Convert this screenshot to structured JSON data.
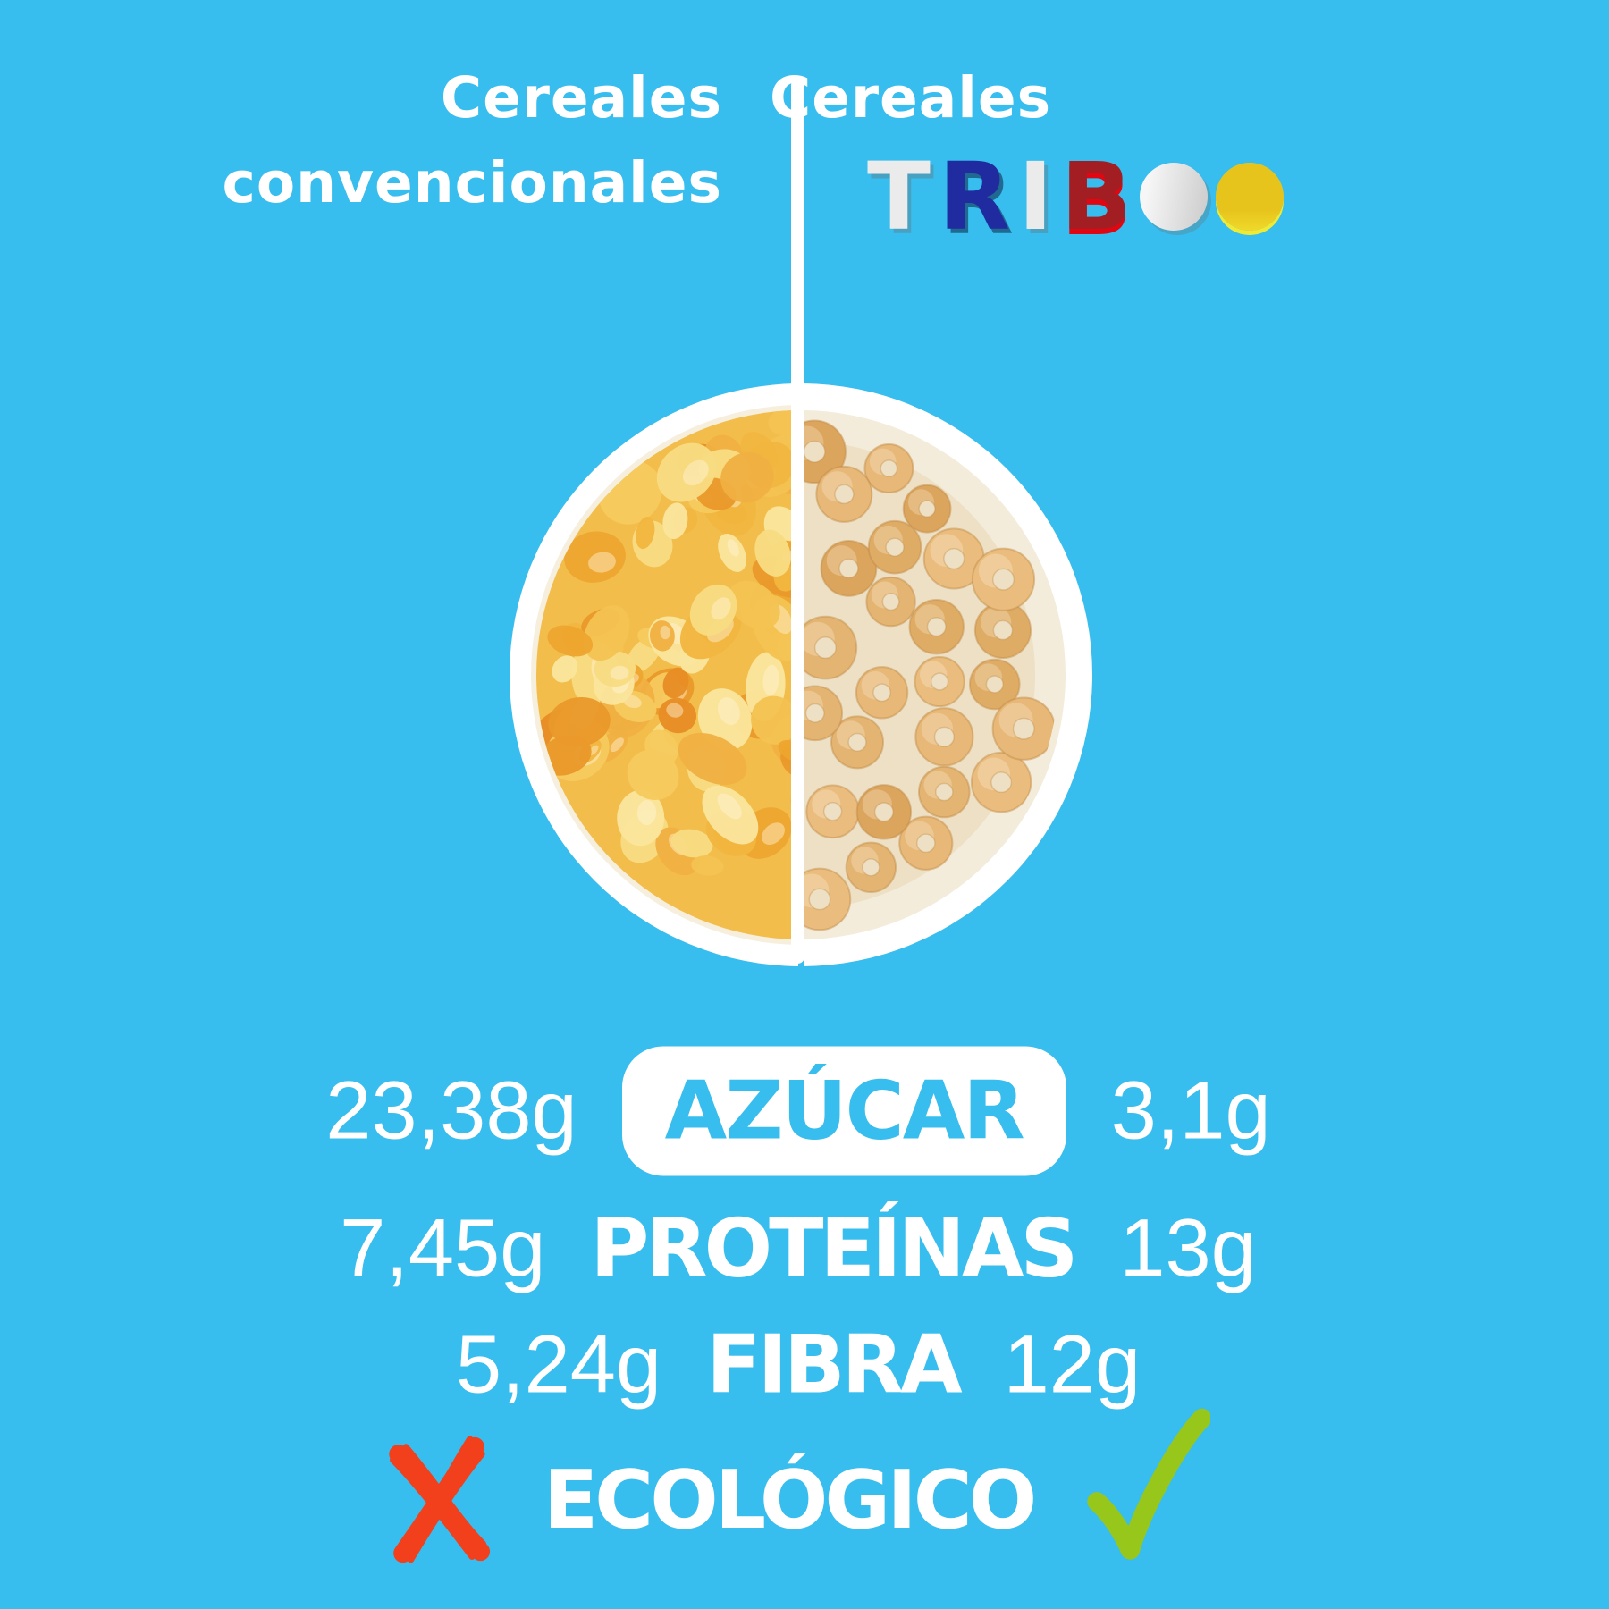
{
  "page": {
    "background": "#37BDEE"
  },
  "header": {
    "left_line1": "Cereales",
    "left_line2": "convencionales",
    "right_prefix": "Cereales",
    "brand": {
      "name": "TRIBOO",
      "letters": [
        {
          "char": "T",
          "color": "#EBEBEB"
        },
        {
          "char": "R",
          "color": "#1F2B9E"
        },
        {
          "char": "I",
          "color": "#EBEBEB"
        },
        {
          "char": "B",
          "color": "#A31E22"
        },
        {
          "char": "O",
          "color": "#E7C41C"
        },
        {
          "char": "O",
          "color": "#E7C41C"
        }
      ]
    }
  },
  "comparison": {
    "rows": [
      {
        "left_value": "23,38g",
        "label": "AZÚCAR",
        "right_value": "3,1g",
        "highlighted": true
      },
      {
        "left_value": "7,45g",
        "label": "PROTEÍNAS",
        "right_value": "13g",
        "highlighted": false
      },
      {
        "left_value": "5,24g",
        "label": "FIBRA",
        "right_value": "12g",
        "highlighted": false
      },
      {
        "left_value": "no",
        "label": "ECOLÓGICO",
        "right_value": "sí",
        "left_icon": "red-cross-icon",
        "right_icon": "green-check-icon"
      }
    ]
  },
  "colors": {
    "background": "#37BDEE",
    "text": "#FFFFFF",
    "pill_background": "#FFFFFF",
    "pill_text": "#37BDEE",
    "cross_red": "#F2401C",
    "check_green": "#98C71B",
    "logo_navy": "#1F2B9E",
    "logo_dark_red": "#A31E22",
    "logo_silver": "#EBEBEB",
    "logo_yellow": "#E7C41C"
  },
  "chart_data": {
    "type": "table",
    "title": "Cereales convencionales vs Cereales TRIBOO",
    "categories": [
      "AZÚCAR",
      "PROTEÍNAS",
      "FIBRA",
      "ECOLÓGICO"
    ],
    "series": [
      {
        "name": "Cereales convencionales",
        "values": [
          "23,38g",
          "7,45g",
          "5,24g",
          "no"
        ]
      },
      {
        "name": "Cereales TRIBOO",
        "values": [
          "3,1g",
          "13g",
          "12g",
          "sí"
        ]
      }
    ],
    "legend_position": "top",
    "notes": "per-100g nutrition comparison infographic; left bowl half = cornflakes, right bowl half = cereal rings"
  }
}
